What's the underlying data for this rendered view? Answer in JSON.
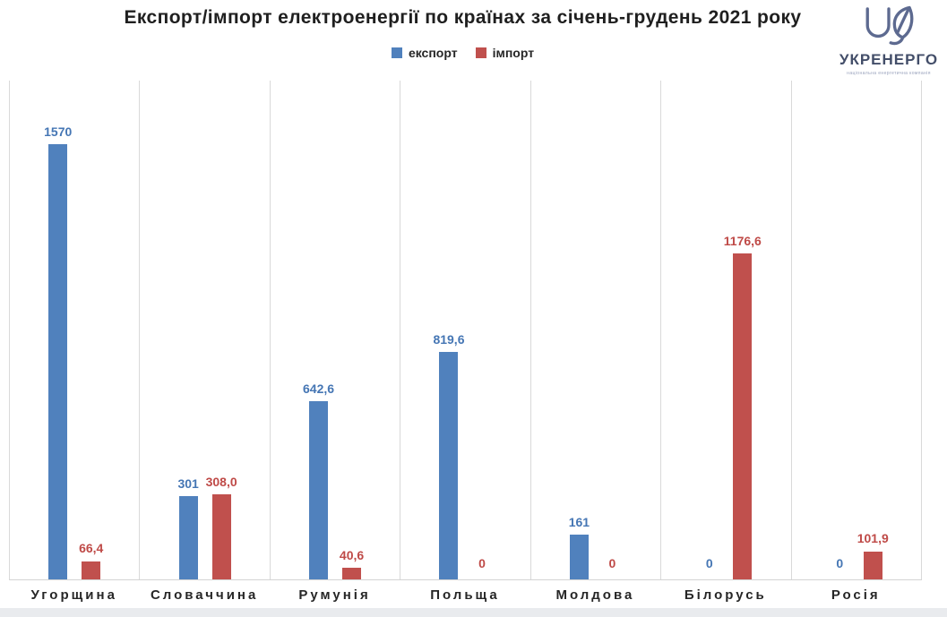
{
  "title": "Експорт/імпорт електроенергії по країнах за січень-грудень 2021 року",
  "logo": {
    "name": "УКРЕНЕРГО",
    "tagline": "національна енергетична компанія",
    "color": "#5d6a90"
  },
  "colors": {
    "export_bar": "#5081bd",
    "import_bar": "#c0504d",
    "export_label": "#4576b4",
    "import_label": "#bf4a47",
    "gridline": "#d9d9d9"
  },
  "chart_data": {
    "type": "bar",
    "title": "Експорт/імпорт електроенергії по країнах за січень-грудень 2021 року",
    "categories": [
      "Угорщина",
      "Словаччина",
      "Румунія",
      "Польща",
      "Молдова",
      "Білорусь",
      "Росія"
    ],
    "series": [
      {
        "name": "експорт",
        "color": "#5081bd",
        "label_color": "#4576b4",
        "values": [
          1570,
          301,
          642.6,
          819.6,
          161,
          0,
          0
        ],
        "labels": [
          "1570",
          "301",
          "642,6",
          "819,6",
          "161",
          "0",
          "0"
        ]
      },
      {
        "name": "імпорт",
        "color": "#c0504d",
        "label_color": "#bf4a47",
        "values": [
          66.4,
          308.0,
          40.6,
          0,
          0,
          1176.6,
          101.9
        ],
        "labels": [
          "66,4",
          "308,0",
          "40,6",
          "0",
          "0",
          "1176,6",
          "101,9"
        ]
      }
    ],
    "xlabel": "",
    "ylabel": "",
    "ylim": [
      0,
      1800
    ],
    "grid": "vertical-category-separators",
    "legend_position": "top-center",
    "value_labels": "above-bars"
  }
}
